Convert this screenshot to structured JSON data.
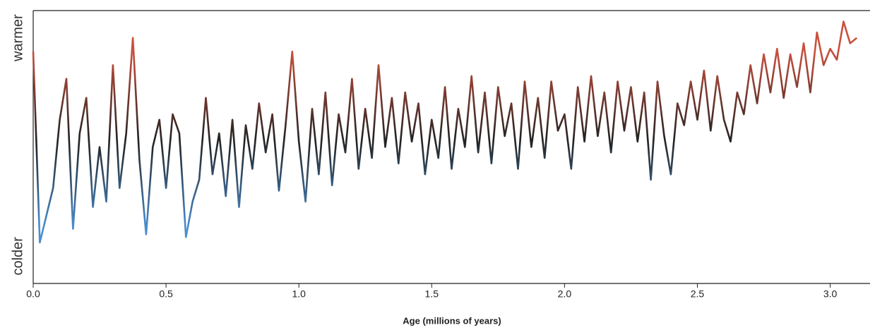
{
  "chart_data": {
    "type": "line",
    "x_label": "Age (millions of years)",
    "x": [
      0,
      0.025,
      0.05,
      0.075,
      0.1,
      0.125,
      0.15,
      0.175,
      0.2,
      0.225,
      0.25,
      0.275,
      0.3,
      0.325,
      0.35,
      0.375,
      0.4,
      0.425,
      0.45,
      0.475,
      0.5,
      0.525,
      0.55,
      0.575,
      0.6,
      0.625,
      0.65,
      0.675,
      0.7,
      0.725,
      0.75,
      0.775,
      0.8,
      0.825,
      0.85,
      0.875,
      0.9,
      0.925,
      0.95,
      0.975,
      1.0,
      1.025,
      1.05,
      1.075,
      1.1,
      1.125,
      1.15,
      1.175,
      1.2,
      1.225,
      1.25,
      1.275,
      1.3,
      1.325,
      1.35,
      1.375,
      1.4,
      1.425,
      1.45,
      1.475,
      1.5,
      1.525,
      1.55,
      1.575,
      1.6,
      1.625,
      1.65,
      1.675,
      1.7,
      1.725,
      1.75,
      1.775,
      1.8,
      1.825,
      1.85,
      1.875,
      1.9,
      1.925,
      1.95,
      1.975,
      2.0,
      2.025,
      2.05,
      2.075,
      2.1,
      2.125,
      2.15,
      2.175,
      2.2,
      2.225,
      2.25,
      2.275,
      2.3,
      2.325,
      2.35,
      2.375,
      2.4,
      2.425,
      2.45,
      2.475,
      2.5,
      2.525,
      2.55,
      2.575,
      2.6,
      2.625,
      2.65,
      2.675,
      2.7,
      2.725,
      2.75,
      2.775,
      2.8,
      2.825,
      2.85,
      2.875,
      2.9,
      2.925,
      2.95,
      2.975,
      3.0,
      3.025,
      3.05,
      3.075,
      3.1
    ],
    "values": [
      85,
      15,
      25,
      35,
      60,
      75,
      20,
      55,
      68,
      28,
      50,
      30,
      80,
      35,
      55,
      90,
      45,
      18,
      50,
      60,
      35,
      62,
      55,
      17,
      30,
      38,
      68,
      40,
      55,
      32,
      60,
      28,
      58,
      42,
      66,
      48,
      62,
      34,
      58,
      85,
      52,
      30,
      64,
      40,
      70,
      36,
      62,
      48,
      75,
      42,
      64,
      46,
      80,
      50,
      68,
      44,
      70,
      52,
      66,
      40,
      60,
      46,
      72,
      42,
      64,
      50,
      76,
      48,
      70,
      44,
      72,
      54,
      66,
      42,
      74,
      50,
      68,
      46,
      74,
      56,
      62,
      42,
      72,
      52,
      76,
      54,
      70,
      48,
      74,
      56,
      72,
      52,
      70,
      38,
      74,
      54,
      40,
      66,
      58,
      74,
      60,
      78,
      56,
      76,
      60,
      52,
      70,
      62,
      80,
      66,
      84,
      70,
      86,
      68,
      84,
      72,
      88,
      70,
      92,
      80,
      86,
      82,
      96,
      88,
      90
    ],
    "line_colors": [
      "#4a8fd0",
      "#222222",
      "#c9503d"
    ],
    "xlim": [
      0,
      3.15
    ],
    "xticks": [
      {
        "value": 0,
        "label": "0.0"
      },
      0.5,
      {
        "value": 1,
        "label": "1.0"
      },
      1.5,
      {
        "value": 2,
        "label": "2.0"
      },
      2.5,
      {
        "value": 3,
        "label": "3.0"
      }
    ],
    "ylim": [
      0,
      100
    ],
    "yticks": [
      {
        "value": 90,
        "label": "warmer"
      },
      {
        "value": 10,
        "label": "colder"
      }
    ]
  }
}
